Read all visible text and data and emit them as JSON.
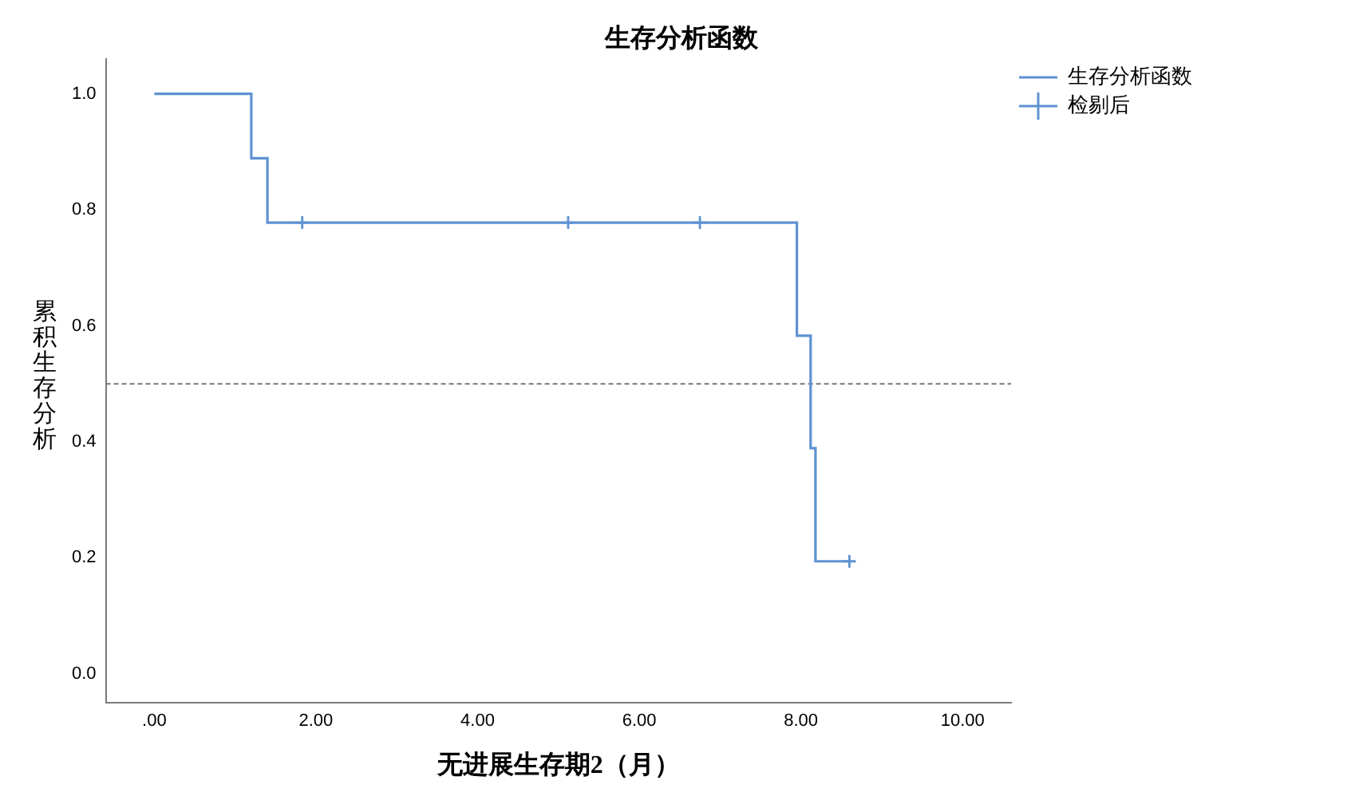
{
  "chart_data": {
    "type": "step",
    "title": "生存分析函数",
    "xlabel": "无进展生存期2（月）",
    "ylabel": "累积生存分析",
    "series": [
      {
        "name": "生存分析函数",
        "color": "#5e92d2",
        "x": [
          0,
          1.2,
          1.4,
          7.95,
          8.12,
          8.18,
          8.6
        ],
        "values": [
          1,
          0.889,
          0.778,
          0.583,
          0.389,
          0.194,
          0.194
        ]
      },
      {
        "name": "检剔后",
        "type": "scatter",
        "marker": "cross",
        "color": "#5e92d2",
        "x": [
          1.83,
          5.12,
          6.75,
          8.6
        ],
        "values": [
          0.778,
          0.778,
          0.778,
          0.194
        ]
      }
    ],
    "xlim": [
      -0.6,
      10.6
    ],
    "xticks": [
      {
        "value": 0,
        "label": ".00"
      },
      {
        "value": 2,
        "label": "2.00"
      },
      {
        "value": 4,
        "label": "4.00"
      },
      {
        "value": 6,
        "label": "6.00"
      },
      {
        "value": 8,
        "label": "8.00"
      },
      {
        "value": 10,
        "label": "10.00"
      }
    ],
    "ylim": [
      -0.05,
      1.06
    ],
    "yticks": [
      {
        "value": 0,
        "label": "0.0"
      },
      {
        "value": 0.2,
        "label": "0.2"
      },
      {
        "value": 0.4,
        "label": "0.4"
      },
      {
        "value": 0.6,
        "label": "0.6"
      },
      {
        "value": 0.8,
        "label": "0.8"
      },
      {
        "value": 1,
        "label": "1.0"
      }
    ],
    "ref_lines": [
      {
        "axis": "y",
        "value": 0.5,
        "color": "#767676",
        "line_style": "dashed"
      }
    ],
    "legend": "top right"
  }
}
